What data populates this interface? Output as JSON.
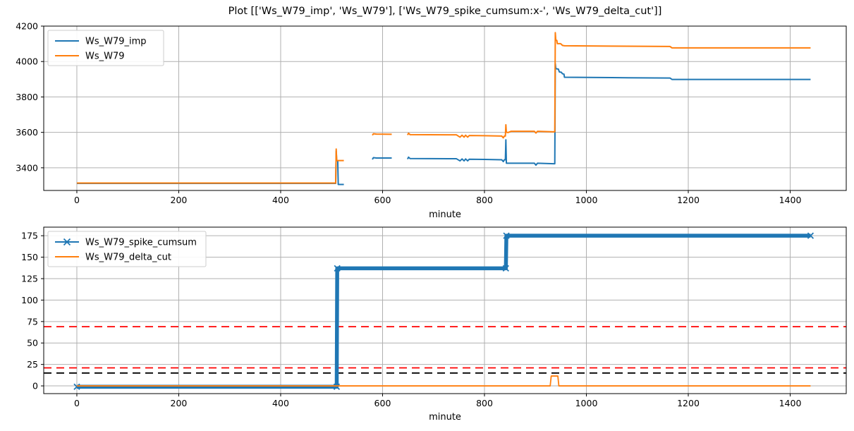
{
  "figure": {
    "title": "Plot [['Ws_W79_imp', 'Ws_W79'], ['Ws_W79_spike_cumsum:x-', 'Ws_W79_delta_cut']]",
    "background_color": "#ffffff",
    "grid_color": "#b0b0b0",
    "spine_color": "#000000",
    "tick_color": "#000000",
    "legend_border_color": "#cccccc"
  },
  "chart_data": [
    {
      "type": "line",
      "name": "top-plot",
      "title": "",
      "xlabel": "minute",
      "ylabel": "",
      "xlim": [
        -65,
        1510
      ],
      "ylim": [
        3272,
        4200
      ],
      "xticks": [
        0,
        200,
        400,
        600,
        800,
        1000,
        1200,
        1400
      ],
      "yticks": [
        3400,
        3600,
        3800,
        4000,
        4200
      ],
      "grid": true,
      "legend_position": "upper-left",
      "series": [
        {
          "name": "Ws_W79_imp",
          "color": "#1f77b4",
          "linewidth": 2,
          "segments": [
            [
              [
                0,
                3312
              ],
              [
                508,
                3312
              ],
              [
                509,
                3495
              ],
              [
                510,
                3440
              ],
              [
                512,
                3440
              ],
              [
                513,
                3306
              ],
              [
                524,
                3306
              ]
            ],
            [
              [
                580,
                3447
              ],
              [
                582,
                3457
              ],
              [
                588,
                3455
              ],
              [
                618,
                3455
              ]
            ],
            [
              [
                649,
                3449
              ],
              [
                651,
                3460
              ],
              [
                654,
                3452
              ],
              [
                745,
                3451
              ],
              [
                752,
                3439
              ],
              [
                756,
                3450
              ],
              [
                760,
                3439
              ],
              [
                763,
                3450
              ],
              [
                767,
                3439
              ],
              [
                770,
                3448
              ],
              [
                800,
                3447
              ],
              [
                834,
                3445
              ],
              [
                837,
                3435
              ],
              [
                839,
                3445
              ],
              [
                841,
                3445
              ],
              [
                842,
                3558
              ],
              [
                843,
                3426
              ],
              [
                898,
                3426
              ],
              [
                901,
                3415
              ],
              [
                904,
                3426
              ],
              [
                936,
                3423
              ],
              [
                938,
                3423
              ],
              [
                939,
                3988
              ],
              [
                940,
                3960
              ],
              [
                945,
                3957
              ],
              [
                947,
                3941
              ],
              [
                951,
                3939
              ],
              [
                953,
                3931
              ],
              [
                956,
                3929
              ],
              [
                957,
                3911
              ],
              [
                1050,
                3909
              ],
              [
                1164,
                3907
              ],
              [
                1168,
                3899
              ],
              [
                1440,
                3899
              ]
            ]
          ]
        },
        {
          "name": "Ws_W79",
          "color": "#ff7f0e",
          "linewidth": 2,
          "segments": [
            [
              [
                0,
                3314
              ],
              [
                508,
                3314
              ],
              [
                509,
                3506
              ],
              [
                510,
                3441
              ],
              [
                524,
                3441
              ]
            ],
            [
              [
                580,
                3584
              ],
              [
                582,
                3592
              ],
              [
                588,
                3590
              ],
              [
                618,
                3589
              ]
            ],
            [
              [
                649,
                3585
              ],
              [
                651,
                3595
              ],
              [
                654,
                3587
              ],
              [
                745,
                3586
              ],
              [
                752,
                3573
              ],
              [
                756,
                3584
              ],
              [
                760,
                3573
              ],
              [
                763,
                3584
              ],
              [
                767,
                3573
              ],
              [
                770,
                3582
              ],
              [
                800,
                3581
              ],
              [
                834,
                3579
              ],
              [
                837,
                3569
              ],
              [
                839,
                3579
              ],
              [
                841,
                3579
              ],
              [
                842,
                3643
              ],
              [
                843,
                3601
              ],
              [
                846,
                3599
              ],
              [
                852,
                3606
              ],
              [
                898,
                3606
              ],
              [
                901,
                3596
              ],
              [
                904,
                3606
              ],
              [
                936,
                3603
              ],
              [
                938,
                3603
              ],
              [
                939,
                4163
              ],
              [
                940,
                4121
              ],
              [
                942,
                4119
              ],
              [
                943,
                4101
              ],
              [
                949,
                4101
              ],
              [
                951,
                4097
              ],
              [
                953,
                4091
              ],
              [
                957,
                4089
              ],
              [
                1050,
                4087
              ],
              [
                1164,
                4085
              ],
              [
                1168,
                4077
              ],
              [
                1440,
                4077
              ]
            ]
          ]
        }
      ]
    },
    {
      "type": "line",
      "name": "bottom-plot",
      "title": "",
      "xlabel": "minute",
      "ylabel": "",
      "xlim": [
        -65,
        1510
      ],
      "ylim": [
        -9,
        185
      ],
      "xticks": [
        0,
        200,
        400,
        600,
        800,
        1000,
        1200,
        1400
      ],
      "yticks": [
        0,
        25,
        50,
        75,
        100,
        125,
        150,
        175
      ],
      "grid": true,
      "legend_position": "upper-left",
      "series": [
        {
          "name": "Ws_W79_spike_cumsum",
          "color": "#1f77b4",
          "linewidth": 5.5,
          "marker": "x",
          "segments": [
            [
              [
                0,
                -1
              ],
              [
                510,
                -1
              ],
              [
                511,
                137
              ],
              [
                842,
                137
              ],
              [
                843,
                175
              ],
              [
                1440,
                175
              ]
            ]
          ]
        },
        {
          "name": "Ws_W79_delta_cut",
          "color": "#ff7f0e",
          "linewidth": 1.8,
          "segments": [
            [
              [
                0,
                0
              ],
              [
                929,
                0
              ],
              [
                931,
                11.5
              ],
              [
                944,
                11.5
              ],
              [
                946,
                0
              ],
              [
                1440,
                0
              ]
            ]
          ]
        }
      ],
      "hlines": [
        {
          "y": 69,
          "color": "#ff0000",
          "style": "dashed"
        },
        {
          "y": 21,
          "color": "#ff0000",
          "style": "dashed"
        },
        {
          "y": 15,
          "color": "#000000",
          "style": "dashed"
        }
      ]
    }
  ]
}
